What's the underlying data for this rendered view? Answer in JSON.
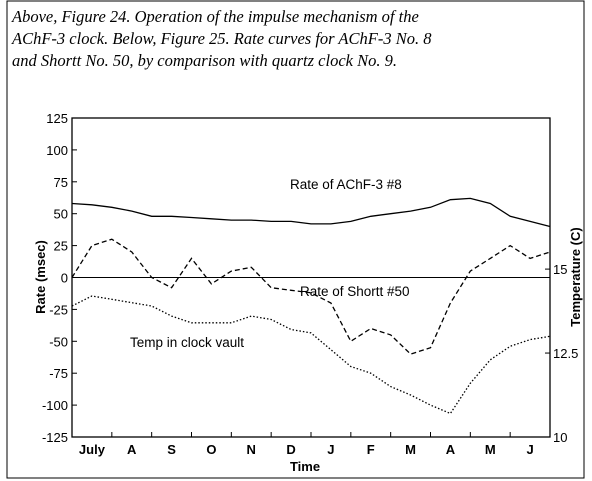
{
  "caption": [
    "Above, Figure 24. Operation of the impulse mechanism of the",
    "AChF-3 clock. Below, Figure 25. Rate curves for AChF-3 No. 8",
    "and Shortt No. 50, by comparison with quartz clock No. 9."
  ],
  "chart_data": {
    "type": "line",
    "xlabel": "Time",
    "ylabel": "Rate (msec)",
    "y2label": "Temperature (C)",
    "categories": [
      "July",
      "A",
      "S",
      "O",
      "N",
      "D",
      "J",
      "F",
      "M",
      "A",
      "M",
      "J"
    ],
    "x": [
      0,
      0.5,
      1,
      1.5,
      2,
      2.5,
      3,
      3.5,
      4,
      4.5,
      5,
      5.5,
      6,
      6.5,
      7,
      7.5,
      8,
      8.5,
      9,
      9.5,
      10,
      10.5,
      11,
      11.5,
      12
    ],
    "xlim": [
      0,
      12
    ],
    "ylim": [
      -125,
      125
    ],
    "yticks": [
      125,
      100,
      75,
      50,
      25,
      0,
      -25,
      -50,
      -75,
      -100,
      -125
    ],
    "y2lim": [
      10,
      19.5
    ],
    "y2ticks": [
      15,
      12.5,
      10
    ],
    "series": [
      {
        "name": "Rate of AChF-3 #8",
        "color": "#000000",
        "dash": "solid",
        "values": [
          58,
          57,
          55,
          52,
          48,
          48,
          47,
          46,
          45,
          45,
          44,
          44,
          42,
          42,
          44,
          48,
          50,
          52,
          55,
          61,
          62,
          58,
          48,
          44,
          40
        ]
      },
      {
        "name": "Rate of Shortt #50",
        "color": "#000000",
        "dash": "dashed",
        "values": [
          0,
          25,
          30,
          20,
          0,
          -8,
          15,
          -5,
          5,
          8,
          -8,
          -10,
          -12,
          -20,
          -50,
          -40,
          -45,
          -60,
          -55,
          -20,
          5,
          15,
          25,
          15,
          20
        ]
      },
      {
        "name": "Temp in clock vault",
        "color": "#000000",
        "dash": "dotted",
        "axis": "y2",
        "values": [
          13.9,
          14.2,
          14.1,
          14.0,
          13.9,
          13.6,
          13.4,
          13.4,
          13.4,
          13.6,
          13.5,
          13.2,
          13.1,
          12.6,
          12.1,
          11.9,
          11.5,
          11.25,
          10.95,
          10.7,
          11.6,
          12.3,
          12.7,
          12.9,
          13.0
        ]
      }
    ]
  }
}
